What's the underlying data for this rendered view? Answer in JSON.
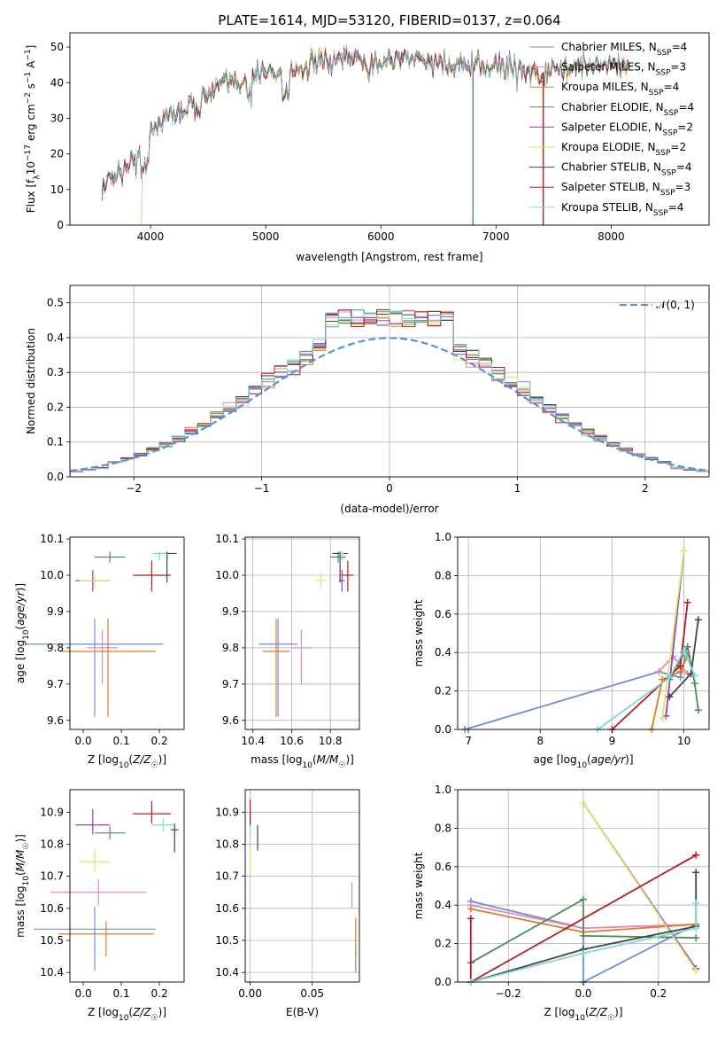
{
  "figure": {
    "title": "PLATE=1614, MJD=53120, FIBERID=0137, z=0.064"
  },
  "series_styles": [
    {
      "name": "Chabrier MILES",
      "color": "#6b8fd6"
    },
    {
      "name": "Salpeter MILES",
      "color": "#e288bf"
    },
    {
      "name": "Kroupa MILES",
      "color": "#e07b25"
    },
    {
      "name": "Chabrier ELODIE",
      "color": "#4f8a5b"
    },
    {
      "name": "Salpeter ELODIE",
      "color": "#9a3fc1"
    },
    {
      "name": "Kroupa ELODIE",
      "color": "#d6ea6a"
    },
    {
      "name": "Chabrier STELIB",
      "color": "#444444"
    },
    {
      "name": "Salpeter STELIB",
      "color": "#b51d1d"
    },
    {
      "name": "Kroupa STELIB",
      "color": "#7fd7de"
    }
  ],
  "chart_data": [
    {
      "id": "spectrum",
      "type": "line",
      "title": "PLATE=1614, MJD=53120, FIBERID=0137, z=0.064",
      "xlabel": "wavelength [Angstrom, rest frame]",
      "ylabel": "Flux [f_λ10^-17 erg cm^-2 s^-1 A^-1]",
      "xlim": [
        3300,
        8850
      ],
      "ylim": [
        0,
        54
      ],
      "xticks": [
        4000,
        5000,
        6000,
        7000,
        8000
      ],
      "yticks": [
        0,
        10,
        20,
        30,
        40,
        50
      ],
      "legend_position": "top-right",
      "legend": [
        {
          "main": "Chabrier MILES, N",
          "sub": "SSP",
          "tail": "=4"
        },
        {
          "main": "Salpeter MILES, N",
          "sub": "SSP",
          "tail": "=3"
        },
        {
          "main": "Kroupa MILES, N",
          "sub": "SSP",
          "tail": "=4"
        },
        {
          "main": "Chabrier ELODIE, N",
          "sub": "SSP",
          "tail": "=4"
        },
        {
          "main": "Salpeter ELODIE, N",
          "sub": "SSP",
          "tail": "=2"
        },
        {
          "main": "Kroupa ELODIE, N",
          "sub": "SSP",
          "tail": "=2"
        },
        {
          "main": "Chabrier STELIB, N",
          "sub": "SSP",
          "tail": "=4"
        },
        {
          "main": "Salpeter STELIB, N",
          "sub": "SSP",
          "tail": "=3"
        },
        {
          "main": "Kroupa STELIB, N",
          "sub": "SSP",
          "tail": "=4"
        }
      ],
      "continuum": {
        "x": [
          3580,
          3700,
          3800,
          3900,
          4000,
          4100,
          4200,
          4300,
          4400,
          4600,
          4800,
          5000,
          5200,
          5400,
          5600,
          5800,
          6000,
          6200,
          6400,
          6600,
          6800,
          7000,
          7200,
          7400,
          7600,
          7800,
          8000,
          8200,
          8400,
          8600
        ],
        "y": [
          10,
          15,
          16,
          20,
          27,
          30,
          31,
          33,
          34,
          39,
          41,
          43,
          43,
          45,
          46,
          47,
          46,
          47,
          46,
          45,
          44,
          45,
          44,
          42,
          44,
          45,
          45,
          45,
          44,
          44
        ]
      },
      "model_start_x": [
        3580,
        3580,
        3580,
        3580,
        3920,
        3920,
        3580,
        3580,
        3580
      ],
      "model_end_x": [
        8150,
        8150,
        8150,
        8150,
        8150,
        8150,
        8150,
        8150,
        8150
      ],
      "drop_lines": [
        {
          "series": 3,
          "x": 6800
        },
        {
          "series": 7,
          "x": 7410
        }
      ]
    },
    {
      "id": "residuals",
      "type": "histogram",
      "xlabel": "(data-model)/error",
      "ylabel": "Normed distribution",
      "xlim": [
        -2.5,
        2.5
      ],
      "ylim": [
        0,
        0.55
      ],
      "xticks": [
        -2,
        -1,
        0,
        1,
        2
      ],
      "yticks": [
        0,
        0.1,
        0.2,
        0.3,
        0.4,
        0.5
      ],
      "bin_width": 0.1,
      "reference_curve": {
        "name": "𝒩(0, 1)",
        "mean": 0,
        "sd": 1,
        "style": "dashed",
        "color": "#5b8fd6"
      },
      "legend_position": "top-right"
    },
    {
      "id": "age_vs_Z",
      "type": "errorbar",
      "xlabel": "Z [log10(Z/Z☉)]",
      "ylabel": "age [log10(age/yr)]",
      "xlim": [
        -0.035,
        0.265
      ],
      "ylim": [
        9.575,
        10.105
      ],
      "xticks": [
        0.0,
        0.1,
        0.2
      ],
      "yticks": [
        9.6,
        9.7,
        9.8,
        9.9,
        10.0,
        10.1
      ],
      "points": [
        {
          "series": 0,
          "x": 0.03,
          "y": 9.81,
          "xerr": 0.18,
          "yerr_low": 0.2,
          "yerr_high": 0.07
        },
        {
          "series": 1,
          "x": 0.05,
          "y": 9.8,
          "xerr": 0.04,
          "yerr_low": 0.1,
          "yerr_high": 0.05
        },
        {
          "series": 2,
          "x": 0.065,
          "y": 9.79,
          "xerr": 0.125,
          "yerr_low": 0.18,
          "yerr_high": 0.09
        },
        {
          "series": 3,
          "x": 0.07,
          "y": 10.05,
          "xerr": 0.04,
          "yerr_low": 0.015,
          "yerr_high": 0.015
        },
        {
          "series": 4,
          "x": 0.025,
          "y": 9.985,
          "xerr": 0.045,
          "yerr_low": 0.03,
          "yerr_high": 0.03
        },
        {
          "series": 5,
          "x": 0.03,
          "y": 9.985,
          "xerr": 0.04,
          "yerr_low": 0.02,
          "yerr_high": 0.02
        },
        {
          "series": 6,
          "x": 0.22,
          "y": 10.06,
          "xerr": 0.025,
          "yerr_low": 0.08,
          "yerr_high": 0.005
        },
        {
          "series": 7,
          "x": 0.18,
          "y": 10.0,
          "xerr": 0.05,
          "yerr_low": 0.045,
          "yerr_high": 0.04
        },
        {
          "series": 8,
          "x": 0.2,
          "y": 10.06,
          "xerr": 0.02,
          "yerr_low": 0.02,
          "yerr_high": 0.005
        }
      ]
    },
    {
      "id": "age_vs_mass",
      "type": "errorbar",
      "xlabel": "mass [log10(M/M☉)]",
      "ylabel": "",
      "xlim": [
        10.36,
        10.95
      ],
      "ylim": [
        9.575,
        10.105
      ],
      "xticks": [
        10.4,
        10.6,
        10.8
      ],
      "yticks": [
        9.6,
        9.7,
        9.8,
        9.9,
        10.0,
        10.1
      ],
      "points": [
        {
          "series": 0,
          "x": 10.53,
          "y": 9.81,
          "xerr": 0.1,
          "yerr_low": 0.2,
          "yerr_high": 0.07
        },
        {
          "series": 1,
          "x": 10.65,
          "y": 9.8,
          "xerr": 0.05,
          "yerr_low": 0.1,
          "yerr_high": 0.05
        },
        {
          "series": 2,
          "x": 10.52,
          "y": 9.79,
          "xerr": 0.07,
          "yerr_low": 0.18,
          "yerr_high": 0.09
        },
        {
          "series": 3,
          "x": 10.84,
          "y": 10.05,
          "xerr": 0.04,
          "yerr_low": 0.015,
          "yerr_high": 0.015
        },
        {
          "series": 4,
          "x": 10.86,
          "y": 9.985,
          "xerr": 0.015,
          "yerr_low": 0.03,
          "yerr_high": 0.03
        },
        {
          "series": 5,
          "x": 10.75,
          "y": 9.985,
          "xerr": 0.03,
          "yerr_low": 0.02,
          "yerr_high": 0.02
        },
        {
          "series": 6,
          "x": 10.85,
          "y": 10.06,
          "xerr": 0.04,
          "yerr_low": 0.08,
          "yerr_high": 0.005
        },
        {
          "series": 7,
          "x": 10.89,
          "y": 10.0,
          "xerr": 0.03,
          "yerr_low": 0.045,
          "yerr_high": 0.04
        },
        {
          "series": 8,
          "x": 10.86,
          "y": 10.06,
          "xerr": 0.01,
          "yerr_low": 0.02,
          "yerr_high": 0.005
        }
      ]
    },
    {
      "id": "weight_vs_age",
      "type": "line",
      "xlabel": "age [log10(age/yr)]",
      "ylabel": "mass weight",
      "xlim": [
        6.85,
        10.35
      ],
      "ylim": [
        0,
        1.0
      ],
      "xticks": [
        7,
        8,
        9,
        10
      ],
      "yticks": [
        0.0,
        0.2,
        0.4,
        0.6,
        0.8,
        1.0
      ],
      "series": [
        {
          "series": 0,
          "x": [
            6.95,
            9.65,
            9.95,
            10.05
          ],
          "y": [
            0.0,
            0.3,
            0.27,
            0.43
          ]
        },
        {
          "series": 1,
          "x": [
            9.65,
            9.85,
            10.05
          ],
          "y": [
            0.3,
            0.38,
            0.29
          ]
        },
        {
          "series": 2,
          "x": [
            9.55,
            9.7,
            9.95,
            10.05
          ],
          "y": [
            0.0,
            0.26,
            0.3,
            0.38
          ]
        },
        {
          "series": 3,
          "x": [
            9.8,
            10.05,
            10.15,
            10.2
          ],
          "y": [
            0.26,
            0.43,
            0.24,
            0.1
          ]
        },
        {
          "series": 4,
          "x": [
            9.75,
            10.0
          ],
          "y": [
            0.07,
            0.93
          ]
        },
        {
          "series": 5,
          "x": [
            9.7,
            10.0
          ],
          "y": [
            0.06,
            0.93
          ]
        },
        {
          "series": 6,
          "x": [
            9.8,
            10.1,
            10.2
          ],
          "y": [
            0.17,
            0.29,
            0.57
          ]
        },
        {
          "series": 7,
          "x": [
            9.0,
            9.95,
            10.05
          ],
          "y": [
            0.0,
            0.33,
            0.66
          ]
        },
        {
          "series": 8,
          "x": [
            8.8,
            9.8,
            10.0,
            10.15
          ],
          "y": [
            0.0,
            0.27,
            0.41,
            0.28
          ]
        }
      ]
    },
    {
      "id": "mass_vs_Z",
      "type": "errorbar",
      "xlabel": "Z [log10(Z/Z☉)]",
      "ylabel": "mass [log10(M/M☉)]",
      "xlim": [
        -0.035,
        0.265
      ],
      "ylim": [
        10.37,
        10.97
      ],
      "xticks": [
        0.0,
        0.1,
        0.2
      ],
      "yticks": [
        10.4,
        10.5,
        10.6,
        10.7,
        10.8,
        10.9
      ],
      "points": [
        {
          "series": 0,
          "x": 0.03,
          "y": 10.535,
          "xerr": 0.16,
          "yerr_low": 0.13,
          "yerr_high": 0.07
        },
        {
          "series": 1,
          "x": 0.04,
          "y": 10.65,
          "xerr": 0.125,
          "yerr_low": 0.04,
          "yerr_high": 0.04
        },
        {
          "series": 2,
          "x": 0.06,
          "y": 10.52,
          "xerr": 0.125,
          "yerr_low": 0.07,
          "yerr_high": 0.04
        },
        {
          "series": 3,
          "x": 0.07,
          "y": 10.835,
          "xerr": 0.04,
          "yerr_low": 0.02,
          "yerr_high": 0.02
        },
        {
          "series": 4,
          "x": 0.025,
          "y": 10.86,
          "xerr": 0.045,
          "yerr_low": 0.03,
          "yerr_high": 0.05
        },
        {
          "series": 5,
          "x": 0.03,
          "y": 10.745,
          "xerr": 0.04,
          "yerr_low": 0.03,
          "yerr_high": 0.04
        },
        {
          "series": 6,
          "x": 0.24,
          "y": 10.845,
          "xerr": 0.01,
          "yerr_low": 0.07,
          "yerr_high": 0.02
        },
        {
          "series": 7,
          "x": 0.18,
          "y": 10.895,
          "xerr": 0.05,
          "yerr_low": 0.03,
          "yerr_high": 0.04
        },
        {
          "series": 8,
          "x": 0.21,
          "y": 10.86,
          "xerr": 0.03,
          "yerr_low": 0.02,
          "yerr_high": 0.02
        }
      ]
    },
    {
      "id": "mass_vs_EBV",
      "type": "errorbar",
      "xlabel": "E(B-V)",
      "ylabel": "",
      "xlim": [
        -0.004,
        0.088
      ],
      "ylim": [
        10.37,
        10.97
      ],
      "xticks": [
        0.0,
        0.05
      ],
      "yticks": [
        10.4,
        10.5,
        10.6,
        10.7,
        10.8,
        10.9
      ],
      "points": [
        {
          "series": 0,
          "x": 0.085,
          "y": 10.44,
          "xerr": 0,
          "yerr_low": 0.04,
          "yerr_high": 0.04
        },
        {
          "series": 1,
          "x": 0.082,
          "y": 10.64,
          "xerr": 0,
          "yerr_low": 0.04,
          "yerr_high": 0.04
        },
        {
          "series": 2,
          "x": 0.085,
          "y": 10.51,
          "xerr": 0,
          "yerr_low": 0.06,
          "yerr_high": 0.06
        },
        {
          "series": 3,
          "x": 0.0,
          "y": 10.87,
          "xerr": 0,
          "yerr_low": 0.02,
          "yerr_high": 0.02
        },
        {
          "series": 4,
          "x": 0.0,
          "y": 10.9,
          "xerr": 0,
          "yerr_low": 0.02,
          "yerr_high": 0.02
        },
        {
          "series": 5,
          "x": 0.0,
          "y": 10.75,
          "xerr": 0,
          "yerr_low": 0.04,
          "yerr_high": 0.04
        },
        {
          "series": 6,
          "x": 0.006,
          "y": 10.82,
          "xerr": 0,
          "yerr_low": 0.04,
          "yerr_high": 0.04
        },
        {
          "series": 7,
          "x": 0.0,
          "y": 10.9,
          "xerr": 0,
          "yerr_low": 0.04,
          "yerr_high": 0.04
        },
        {
          "series": 8,
          "x": 0.0,
          "y": 10.84,
          "xerr": 0,
          "yerr_low": 0.02,
          "yerr_high": 0.02
        }
      ]
    },
    {
      "id": "weight_vs_Z",
      "type": "line",
      "xlabel": "Z [log10(Z/Z☉)]",
      "ylabel": "mass weight",
      "xlim": [
        -0.335,
        0.335
      ],
      "ylim": [
        0,
        1.0
      ],
      "xticks": [
        -0.2,
        0.0,
        0.2
      ],
      "yticks": [
        0.0,
        0.2,
        0.4,
        0.6,
        0.8,
        1.0
      ],
      "series": [
        {
          "series": 0,
          "x": [
            -0.3,
            0.0,
            0.0,
            0.3
          ],
          "y": [
            0.42,
            0.28,
            0.0,
            0.3
          ]
        },
        {
          "series": 1,
          "x": [
            -0.3,
            0.0,
            0.3
          ],
          "y": [
            0.4,
            0.28,
            0.3
          ]
        },
        {
          "series": 2,
          "x": [
            -0.3,
            0.0,
            0.3
          ],
          "y": [
            0.38,
            0.26,
            0.3
          ]
        },
        {
          "series": 3,
          "x": [
            -0.3,
            0.0,
            0.0,
            0.3
          ],
          "y": [
            0.1,
            0.43,
            0.24,
            0.23
          ]
        },
        {
          "series": 4,
          "x": [
            0.0,
            0.3
          ],
          "y": [
            0.93,
            0.07
          ]
        },
        {
          "series": 5,
          "x": [
            0.0,
            0.3
          ],
          "y": [
            0.93,
            0.06
          ]
        },
        {
          "series": 6,
          "x": [
            -0.3,
            0.0,
            0.3,
            0.3
          ],
          "y": [
            0.0,
            0.17,
            0.29,
            0.57
          ]
        },
        {
          "series": 7,
          "x": [
            -0.3,
            -0.3,
            0.3
          ],
          "y": [
            0.33,
            0.0,
            0.66
          ]
        },
        {
          "series": 8,
          "x": [
            -0.3,
            0.0,
            0.3,
            0.3
          ],
          "y": [
            0.0,
            0.15,
            0.28,
            0.41
          ]
        }
      ]
    }
  ]
}
